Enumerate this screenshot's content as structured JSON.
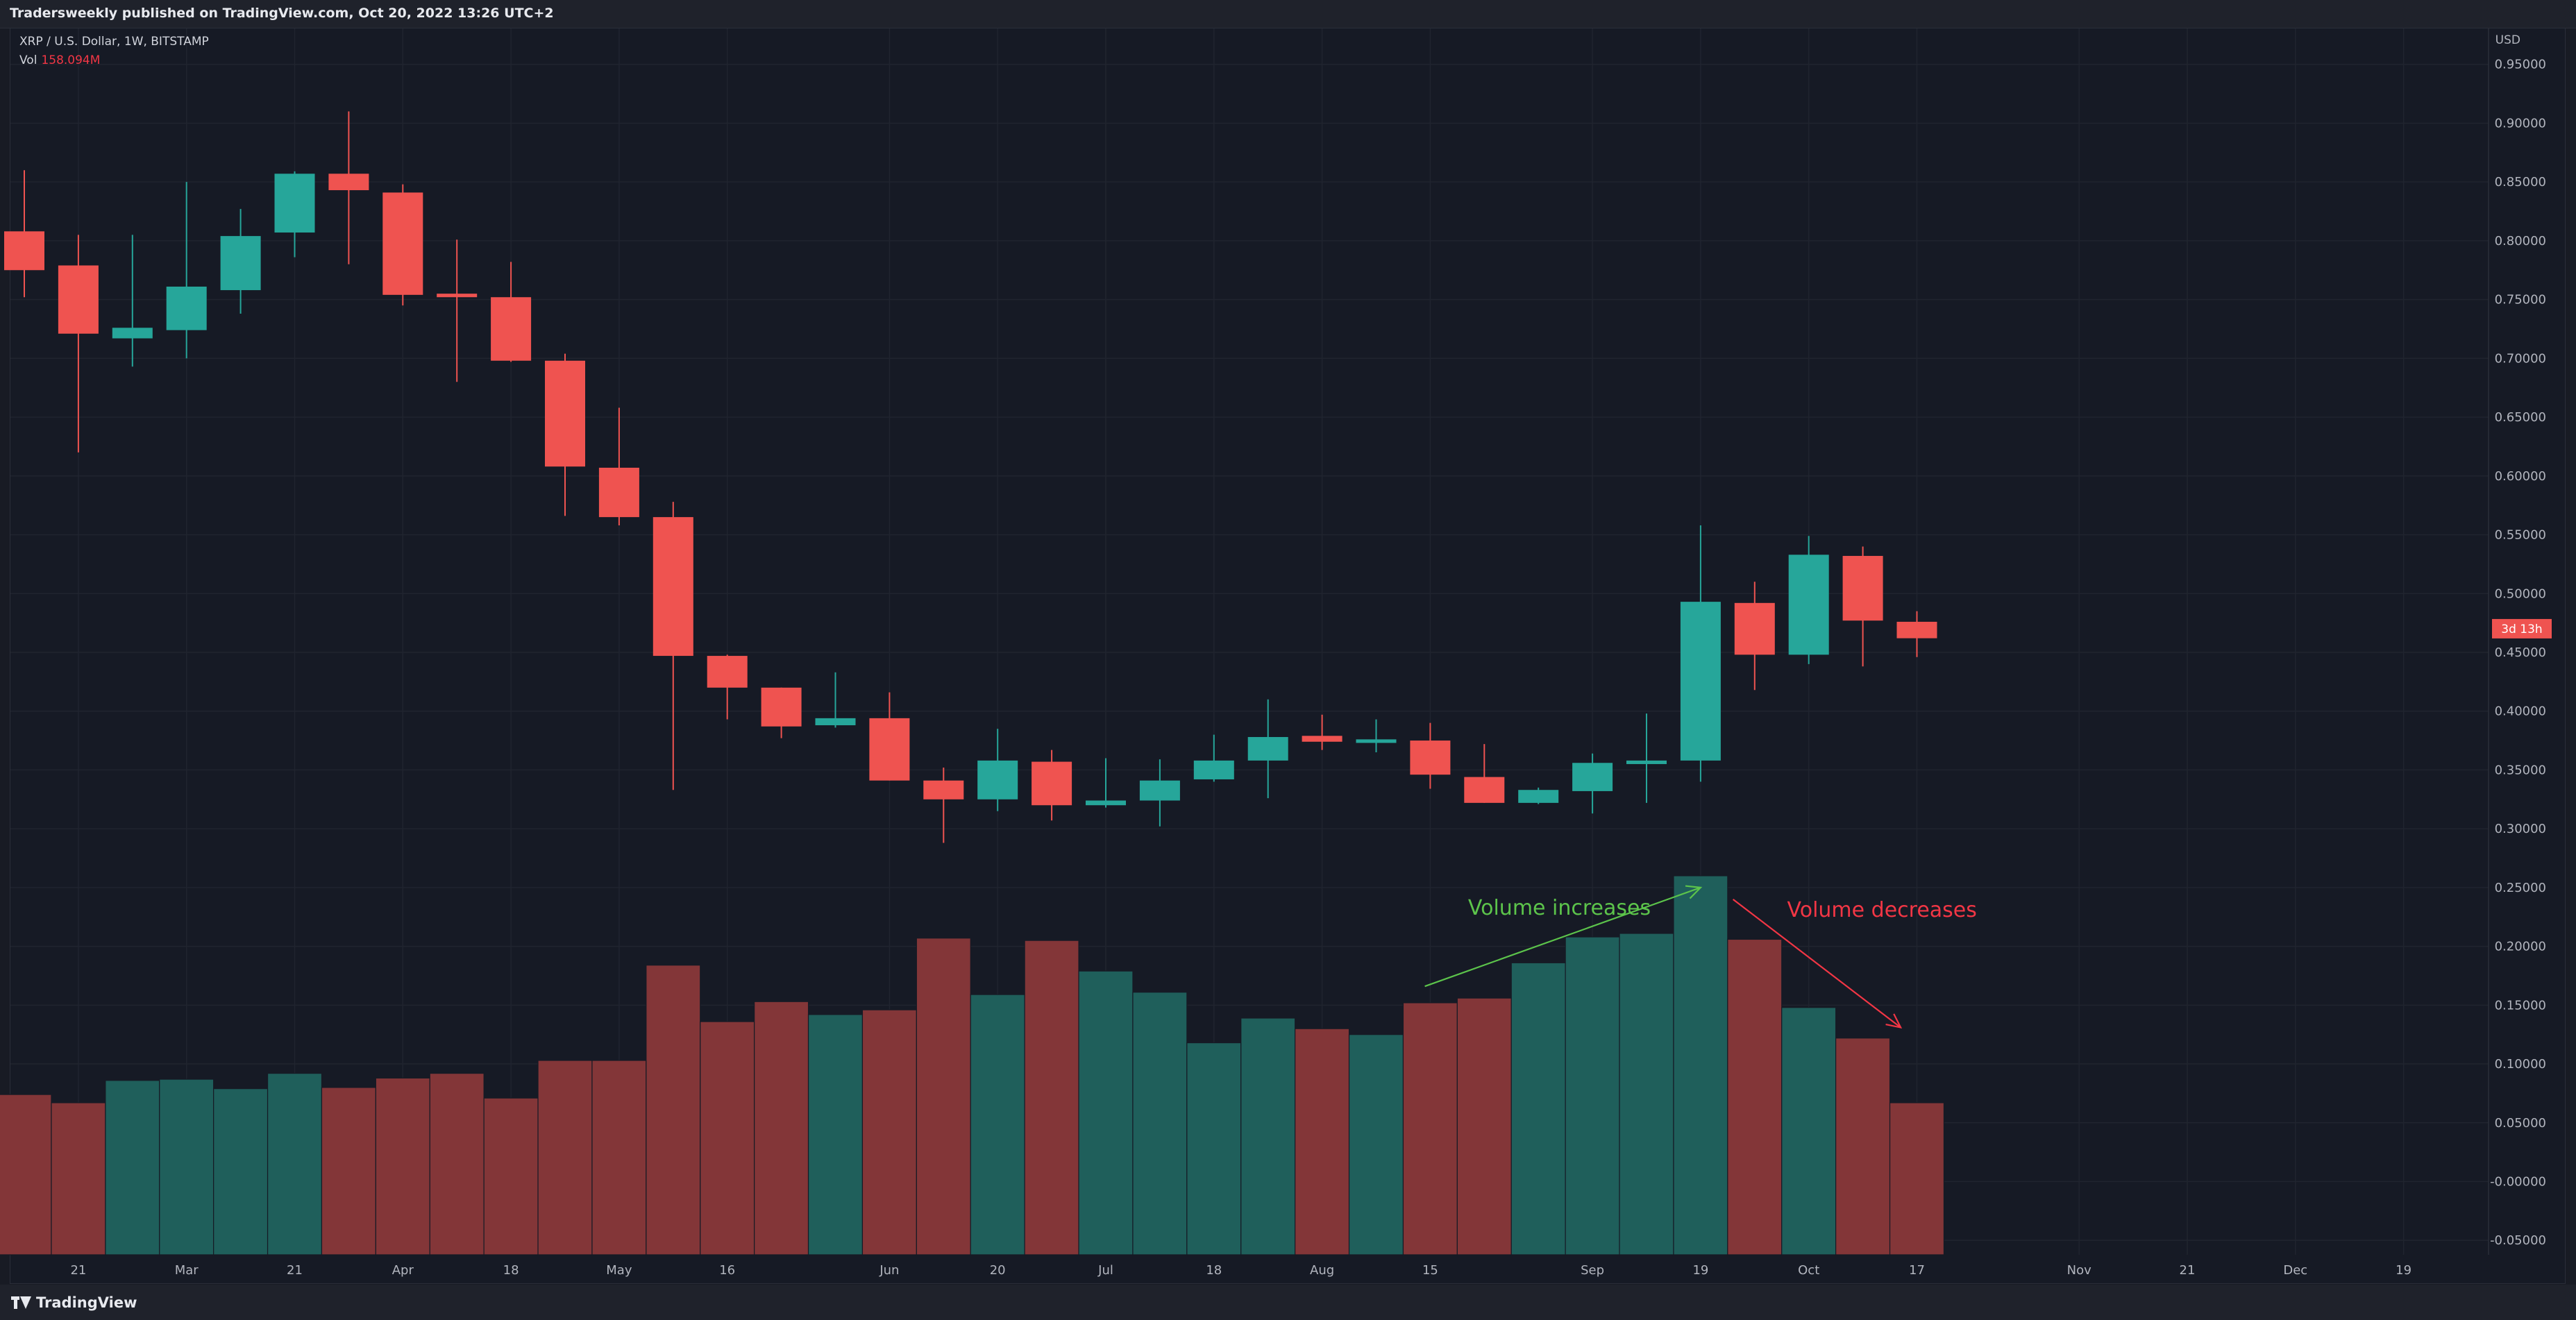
{
  "header": {
    "published": "Tradersweekly published on TradingView.com, Oct 20, 2022 13:26 UTC+2"
  },
  "legend": {
    "symbol": "XRP / U.S. Dollar, 1W, BITSTAMP",
    "vol_label": "Vol",
    "vol_value": "158.094M"
  },
  "footer": {
    "brand": "TradingView"
  },
  "chart_data": {
    "type": "candlestick",
    "currency": "USD",
    "x_ticks": [
      "21",
      "Mar",
      "21",
      "Apr",
      "18",
      "May",
      "16",
      "Jun",
      "20",
      "Jul",
      "18",
      "Aug",
      "15",
      "Sep",
      "19",
      "Oct",
      "17",
      "Nov",
      "21",
      "Dec",
      "19"
    ],
    "x_tick_weeks": [
      1,
      3,
      5,
      7,
      9,
      11,
      13,
      16,
      18,
      20,
      22,
      24,
      26,
      29,
      31,
      33,
      35,
      38,
      40,
      42,
      44
    ],
    "y_ticks": [
      "0.95000",
      "0.90000",
      "0.85000",
      "0.80000",
      "0.75000",
      "0.70000",
      "0.65000",
      "0.60000",
      "0.55000",
      "0.50000",
      "0.45000",
      "0.40000",
      "0.35000",
      "0.30000",
      "0.25000",
      "0.20000",
      "0.15000",
      "0.10000",
      "0.05000",
      "-0.00000",
      "-0.05000"
    ],
    "y_range": [
      -0.05,
      0.95
    ],
    "price_label": "3d 13h",
    "last_price": 0.4701,
    "colors": {
      "up": "#26a69a",
      "down": "#ef5350",
      "vol_up": "#1f5f5b",
      "vol_down": "#833638"
    },
    "candles": [
      {
        "o": 0.808,
        "h": 0.86,
        "l": 0.752,
        "c": 0.775,
        "v": 0.074
      },
      {
        "o": 0.779,
        "h": 0.805,
        "l": 0.62,
        "c": 0.721,
        "v": 0.067
      },
      {
        "o": 0.717,
        "h": 0.805,
        "l": 0.693,
        "c": 0.726,
        "v": 0.086
      },
      {
        "o": 0.724,
        "h": 0.85,
        "l": 0.7,
        "c": 0.761,
        "v": 0.087
      },
      {
        "o": 0.758,
        "h": 0.827,
        "l": 0.738,
        "c": 0.804,
        "v": 0.079
      },
      {
        "o": 0.807,
        "h": 0.859,
        "l": 0.786,
        "c": 0.857,
        "v": 0.092
      },
      {
        "o": 0.857,
        "h": 0.91,
        "l": 0.78,
        "c": 0.843,
        "v": 0.08
      },
      {
        "o": 0.841,
        "h": 0.848,
        "l": 0.745,
        "c": 0.754,
        "v": 0.088
      },
      {
        "o": 0.755,
        "h": 0.801,
        "l": 0.68,
        "c": 0.752,
        "v": 0.092
      },
      {
        "o": 0.752,
        "h": 0.782,
        "l": 0.697,
        "c": 0.698,
        "v": 0.071
      },
      {
        "o": 0.698,
        "h": 0.704,
        "l": 0.566,
        "c": 0.608,
        "v": 0.103
      },
      {
        "o": 0.607,
        "h": 0.658,
        "l": 0.558,
        "c": 0.565,
        "v": 0.103
      },
      {
        "o": 0.565,
        "h": 0.578,
        "l": 0.333,
        "c": 0.447,
        "v": 0.184
      },
      {
        "o": 0.447,
        "h": 0.448,
        "l": 0.393,
        "c": 0.42,
        "v": 0.136
      },
      {
        "o": 0.42,
        "h": 0.42,
        "l": 0.377,
        "c": 0.387,
        "v": 0.153
      },
      {
        "o": 0.388,
        "h": 0.433,
        "l": 0.386,
        "c": 0.394,
        "v": 0.142
      },
      {
        "o": 0.394,
        "h": 0.416,
        "l": 0.341,
        "c": 0.341,
        "v": 0.146
      },
      {
        "o": 0.341,
        "h": 0.352,
        "l": 0.288,
        "c": 0.325,
        "v": 0.207
      },
      {
        "o": 0.325,
        "h": 0.385,
        "l": 0.315,
        "c": 0.358,
        "v": 0.159
      },
      {
        "o": 0.357,
        "h": 0.367,
        "l": 0.307,
        "c": 0.32,
        "v": 0.205
      },
      {
        "o": 0.32,
        "h": 0.36,
        "l": 0.318,
        "c": 0.324,
        "v": 0.179
      },
      {
        "o": 0.324,
        "h": 0.359,
        "l": 0.302,
        "c": 0.341,
        "v": 0.161
      },
      {
        "o": 0.342,
        "h": 0.38,
        "l": 0.34,
        "c": 0.358,
        "v": 0.118
      },
      {
        "o": 0.358,
        "h": 0.41,
        "l": 0.326,
        "c": 0.378,
        "v": 0.139
      },
      {
        "o": 0.379,
        "h": 0.397,
        "l": 0.367,
        "c": 0.374,
        "v": 0.13
      },
      {
        "o": 0.373,
        "h": 0.393,
        "l": 0.365,
        "c": 0.376,
        "v": 0.125
      },
      {
        "o": 0.375,
        "h": 0.39,
        "l": 0.334,
        "c": 0.346,
        "v": 0.152
      },
      {
        "o": 0.344,
        "h": 0.372,
        "l": 0.322,
        "c": 0.322,
        "v": 0.156
      },
      {
        "o": 0.322,
        "h": 0.335,
        "l": 0.321,
        "c": 0.333,
        "v": 0.186
      },
      {
        "o": 0.332,
        "h": 0.364,
        "l": 0.313,
        "c": 0.356,
        "v": 0.208
      },
      {
        "o": 0.355,
        "h": 0.398,
        "l": 0.322,
        "c": 0.358,
        "v": 0.211
      },
      {
        "o": 0.358,
        "h": 0.558,
        "l": 0.34,
        "c": 0.493,
        "v": 0.26
      },
      {
        "o": 0.492,
        "h": 0.51,
        "l": 0.418,
        "c": 0.448,
        "v": 0.206
      },
      {
        "o": 0.448,
        "h": 0.549,
        "l": 0.44,
        "c": 0.533,
        "v": 0.148
      },
      {
        "o": 0.532,
        "h": 0.54,
        "l": 0.438,
        "c": 0.477,
        "v": 0.122
      },
      {
        "o": 0.476,
        "h": 0.485,
        "l": 0.446,
        "c": 0.462,
        "v": 0.067
      }
    ],
    "annotations": [
      {
        "text": "Volume increases",
        "color": "#5cc44b",
        "week": 26.7,
        "value": 0.227,
        "arrow_from": [
          25.9,
          0.166
        ],
        "arrow_to": [
          31.0,
          0.25
        ]
      },
      {
        "text": "Volume decreases",
        "color": "#f23645",
        "week": 32.6,
        "value": 0.225,
        "arrow_from": [
          31.6,
          0.24
        ],
        "arrow_to": [
          34.7,
          0.131
        ]
      }
    ]
  }
}
